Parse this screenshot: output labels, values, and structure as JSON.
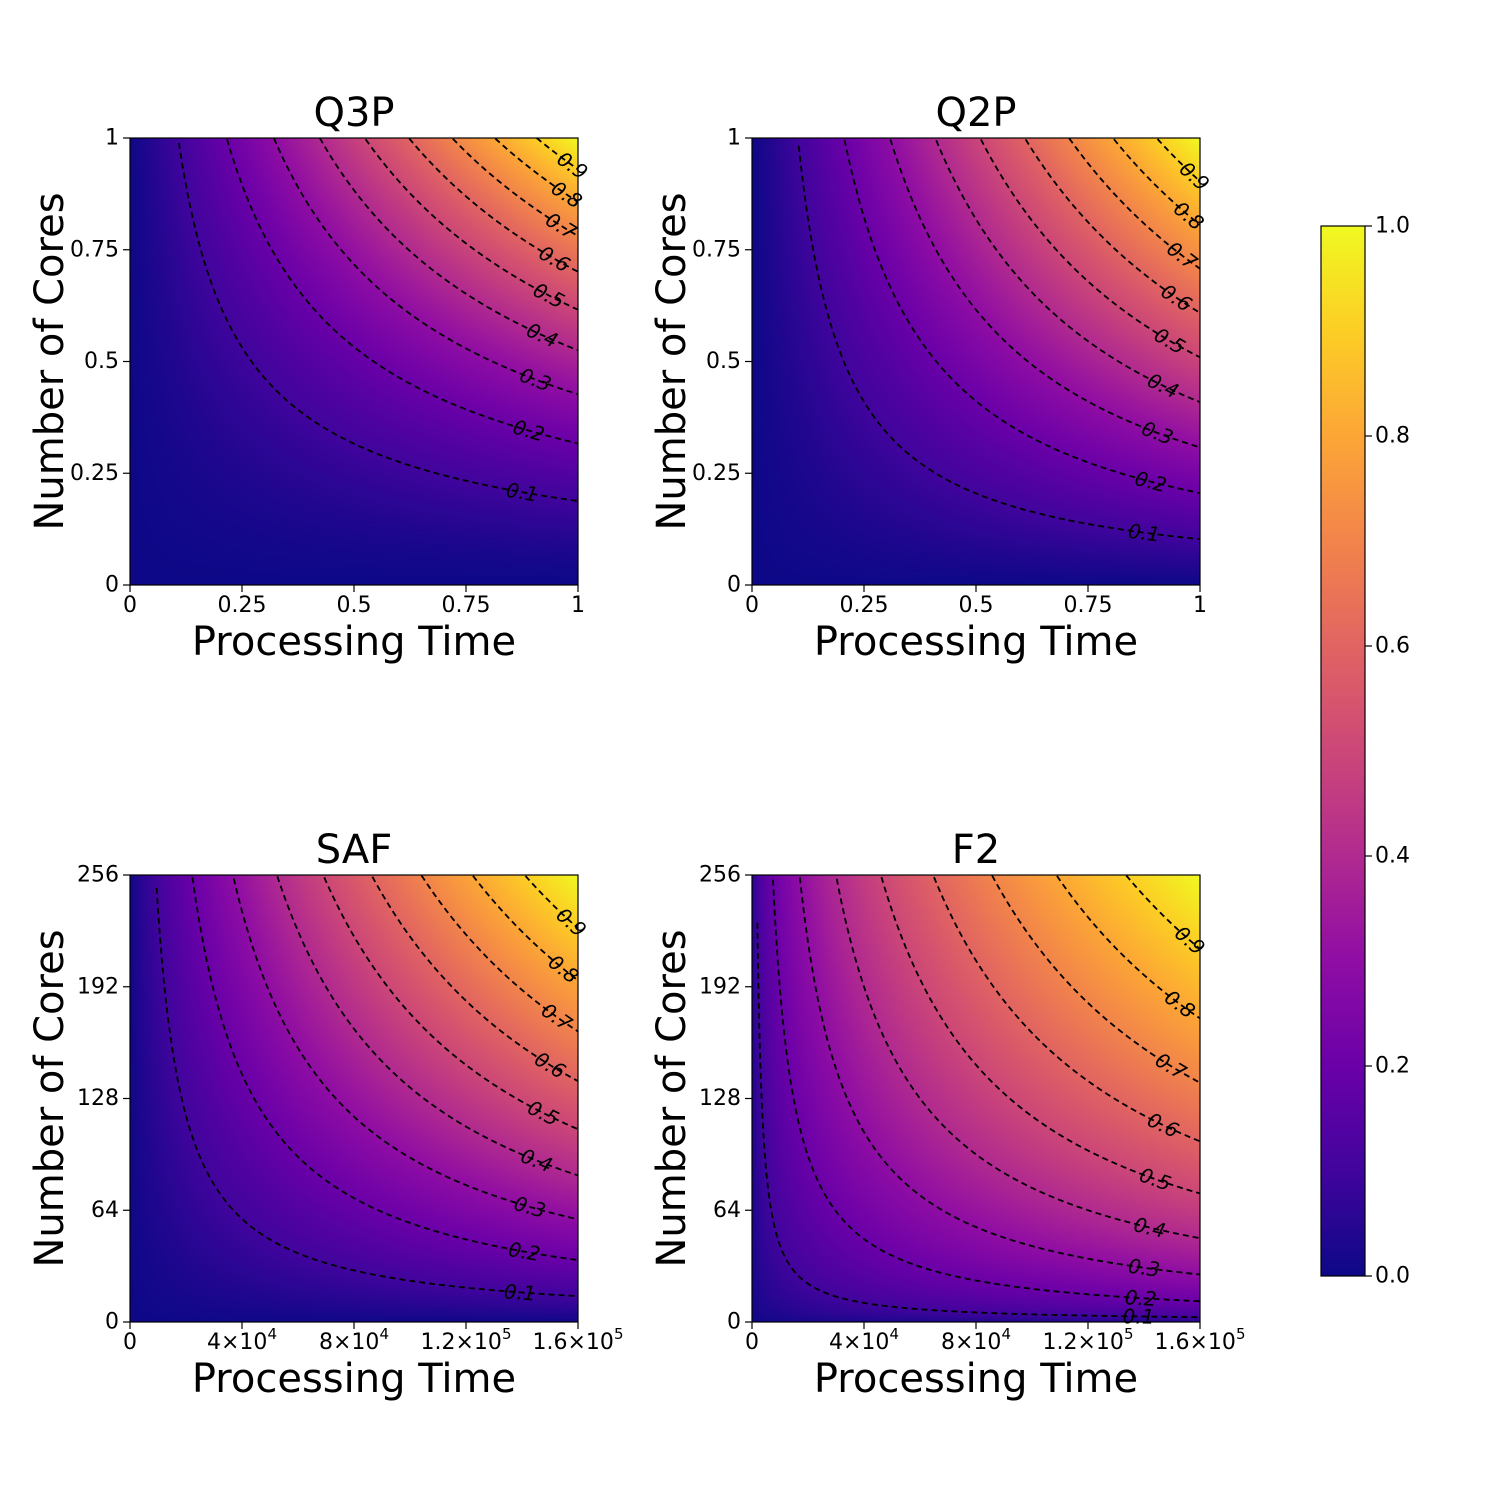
{
  "chart_data": [
    {
      "type": "heatmap",
      "title": "Q3P",
      "xlabel": "Processing Time",
      "ylabel": "Number of Cores",
      "xlim": [
        0,
        1
      ],
      "ylim": [
        0,
        1
      ],
      "xticks": [
        0,
        0.25,
        0.5,
        0.75,
        1
      ],
      "xtick_labels": [
        "0",
        "0.25",
        "0.5",
        "0.75",
        "1"
      ],
      "yticks": [
        0,
        0.25,
        0.5,
        0.75,
        1
      ],
      "ytick_labels": [
        "0",
        "0.25",
        "0.5",
        "0.75",
        "1"
      ],
      "surface": "value = 0.55*(x^1.35*y^1.8)^0.65 + 0.45*(x^1.35*y^1.8)",
      "contour_levels": [
        0.1,
        0.2,
        0.3,
        0.4,
        0.5,
        0.6,
        0.7,
        0.8,
        0.9
      ],
      "contour_labels": [
        "0.1",
        "0.2",
        "0.3",
        "0.4",
        "0.5",
        "0.6",
        "0.7",
        "0.8",
        "0.9"
      ],
      "contour_style": "dashed",
      "colormap": "plasma"
    },
    {
      "type": "heatmap",
      "title": "Q2P",
      "xlabel": "Processing Time",
      "ylabel": "Number of Cores",
      "xlim": [
        0,
        1
      ],
      "ylim": [
        0,
        1
      ],
      "xticks": [
        0,
        0.25,
        0.5,
        0.75,
        1
      ],
      "xtick_labels": [
        "0",
        "0.25",
        "0.5",
        "0.75",
        "1"
      ],
      "yticks": [
        0,
        0.25,
        0.5,
        0.75,
        1
      ],
      "ytick_labels": [
        "0",
        "0.25",
        "0.5",
        "0.75",
        "1"
      ],
      "surface": "value = 0.55*(x^1.2*y^1.2)^0.75 + 0.45*(x^1.2*y^1.2)",
      "contour_levels": [
        0.1,
        0.2,
        0.3,
        0.4,
        0.5,
        0.6,
        0.7,
        0.8,
        0.9
      ],
      "contour_labels": [
        "0.1",
        "0.2",
        "0.3",
        "0.4",
        "0.5",
        "0.6",
        "0.7",
        "0.8",
        "0.9"
      ],
      "contour_style": "dashed",
      "colormap": "plasma"
    },
    {
      "type": "heatmap",
      "title": "SAF",
      "xlabel": "Processing Time",
      "ylabel": "Number of Cores",
      "xlim": [
        0,
        160000
      ],
      "ylim": [
        0,
        256
      ],
      "xticks": [
        0,
        40000,
        80000,
        120000,
        160000
      ],
      "xtick_labels": [
        {
          "text": "0"
        },
        {
          "text": "4×10",
          "sup": "4"
        },
        {
          "text": "8×10",
          "sup": "4"
        },
        {
          "text": "1.2×10",
          "sup": "5"
        },
        {
          "text": "1.6×10",
          "sup": "5"
        }
      ],
      "yticks": [
        0,
        64,
        128,
        192,
        256
      ],
      "ytick_labels": [
        "0",
        "64",
        "128",
        "192",
        "256"
      ],
      "surface": "value = 0.6*(u*v)^0.72 + 0.4*(u*v), u = x/160000, v = y/256",
      "contour_levels": [
        0.1,
        0.2,
        0.3,
        0.4,
        0.5,
        0.6,
        0.7,
        0.8,
        0.9
      ],
      "contour_labels": [
        "0.1",
        "0.2",
        "0.3",
        "0.4",
        "0.5",
        "0.6",
        "0.7",
        "0.8",
        "0.9"
      ],
      "contour_style": "dashed",
      "colormap": "plasma"
    },
    {
      "type": "heatmap",
      "title": "F2",
      "xlabel": "Processing Time",
      "ylabel": "Number of Cores",
      "xlim": [
        0,
        160000
      ],
      "ylim": [
        0,
        256
      ],
      "xticks": [
        0,
        40000,
        80000,
        120000,
        160000
      ],
      "xtick_labels": [
        {
          "text": "0"
        },
        {
          "text": "4×10",
          "sup": "4"
        },
        {
          "text": "8×10",
          "sup": "4"
        },
        {
          "text": "1.2×10",
          "sup": "5"
        },
        {
          "text": "1.6×10",
          "sup": "5"
        }
      ],
      "yticks": [
        0,
        64,
        128,
        192,
        256
      ],
      "ytick_labels": [
        "0",
        "64",
        "128",
        "192",
        "256"
      ],
      "surface": "value = 0.75*(u*v)^0.45 + 0.25*(u*v), u = x/160000, v = y/256",
      "contour_levels": [
        0.1,
        0.2,
        0.3,
        0.4,
        0.5,
        0.6,
        0.7,
        0.8,
        0.9
      ],
      "contour_labels": [
        "0.1",
        "0.2",
        "0.3",
        "0.4",
        "0.5",
        "0.6",
        "0.7",
        "0.8",
        "0.9"
      ],
      "contour_style": "dashed",
      "colormap": "plasma"
    }
  ],
  "colorbar": {
    "colormap": "plasma",
    "range": [
      0,
      1
    ],
    "ticks": [
      0,
      0.2,
      0.4,
      0.6,
      0.8,
      1.0
    ],
    "tick_labels": [
      "0.0",
      "0.2",
      "0.4",
      "0.6",
      "0.8",
      "1.0"
    ],
    "placement": "right"
  }
}
